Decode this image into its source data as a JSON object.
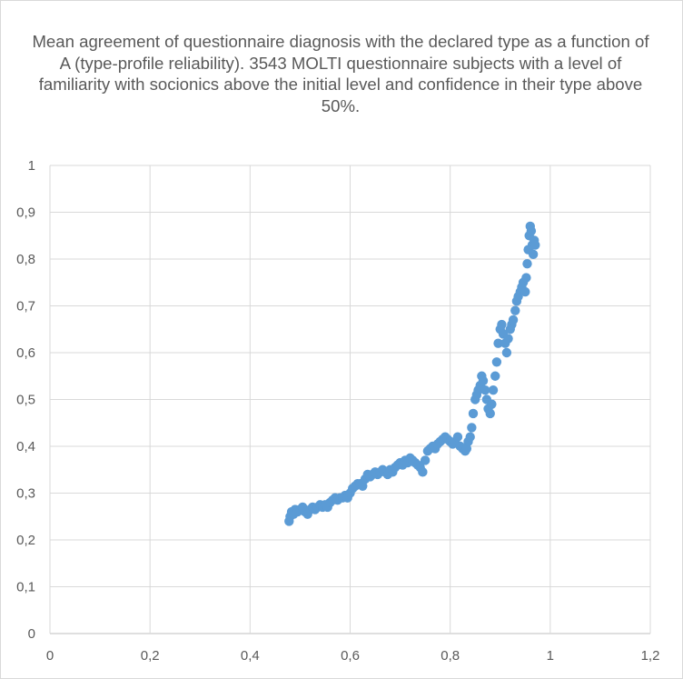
{
  "chart_data": {
    "type": "scatter",
    "title": "Mean agreement of questionnaire diagnosis with the declared type as a function of A (type-profile reliability). 3543 MOLTI questionnaire subjects with a level of familiarity with socionics above the initial level and confidence in their type above 50%.",
    "xlabel": "",
    "ylabel": "",
    "xlim": [
      0,
      1.2
    ],
    "ylim": [
      0,
      1
    ],
    "x_ticks": [
      "0",
      "0,2",
      "0,4",
      "0,6",
      "0,8",
      "1",
      "1,2"
    ],
    "y_ticks": [
      "0",
      "0,1",
      "0,2",
      "0,3",
      "0,4",
      "0,5",
      "0,6",
      "0,7",
      "0,8",
      "0,9",
      "1"
    ],
    "grid": true,
    "legend": "none",
    "series": [
      {
        "color": "#5b9bd5",
        "x": [
          0.478,
          0.48,
          0.483,
          0.487,
          0.49,
          0.495,
          0.5,
          0.505,
          0.51,
          0.515,
          0.52,
          0.525,
          0.53,
          0.535,
          0.54,
          0.545,
          0.55,
          0.555,
          0.56,
          0.565,
          0.57,
          0.575,
          0.58,
          0.585,
          0.59,
          0.595,
          0.6,
          0.605,
          0.61,
          0.615,
          0.62,
          0.625,
          0.63,
          0.635,
          0.64,
          0.645,
          0.65,
          0.655,
          0.66,
          0.665,
          0.67,
          0.675,
          0.68,
          0.685,
          0.69,
          0.695,
          0.7,
          0.705,
          0.71,
          0.715,
          0.72,
          0.725,
          0.73,
          0.735,
          0.74,
          0.745,
          0.75,
          0.755,
          0.76,
          0.765,
          0.77,
          0.775,
          0.78,
          0.785,
          0.79,
          0.795,
          0.8,
          0.805,
          0.81,
          0.815,
          0.82,
          0.825,
          0.83,
          0.833,
          0.836,
          0.84,
          0.843,
          0.846,
          0.85,
          0.853,
          0.856,
          0.86,
          0.863,
          0.866,
          0.87,
          0.873,
          0.876,
          0.88,
          0.883,
          0.886,
          0.89,
          0.893,
          0.896,
          0.9,
          0.903,
          0.906,
          0.91,
          0.913,
          0.916,
          0.92,
          0.923,
          0.926,
          0.93,
          0.933,
          0.936,
          0.94,
          0.943,
          0.946,
          0.95,
          0.952,
          0.954,
          0.956,
          0.958,
          0.96,
          0.962,
          0.964,
          0.966,
          0.968,
          0.97
        ],
        "y": [
          0.24,
          0.25,
          0.26,
          0.255,
          0.265,
          0.26,
          0.265,
          0.27,
          0.26,
          0.255,
          0.265,
          0.27,
          0.265,
          0.27,
          0.275,
          0.27,
          0.275,
          0.27,
          0.28,
          0.285,
          0.29,
          0.285,
          0.29,
          0.29,
          0.295,
          0.29,
          0.3,
          0.31,
          0.315,
          0.32,
          0.32,
          0.315,
          0.33,
          0.34,
          0.335,
          0.34,
          0.345,
          0.34,
          0.345,
          0.35,
          0.345,
          0.34,
          0.35,
          0.345,
          0.355,
          0.36,
          0.365,
          0.36,
          0.37,
          0.365,
          0.375,
          0.37,
          0.365,
          0.36,
          0.355,
          0.345,
          0.37,
          0.39,
          0.395,
          0.4,
          0.395,
          0.405,
          0.41,
          0.415,
          0.42,
          0.415,
          0.41,
          0.405,
          0.41,
          0.42,
          0.4,
          0.395,
          0.39,
          0.395,
          0.41,
          0.42,
          0.44,
          0.47,
          0.5,
          0.51,
          0.52,
          0.53,
          0.55,
          0.54,
          0.52,
          0.5,
          0.48,
          0.47,
          0.49,
          0.52,
          0.55,
          0.58,
          0.62,
          0.65,
          0.66,
          0.64,
          0.62,
          0.6,
          0.63,
          0.65,
          0.66,
          0.67,
          0.69,
          0.71,
          0.72,
          0.73,
          0.74,
          0.75,
          0.73,
          0.76,
          0.79,
          0.82,
          0.85,
          0.87,
          0.86,
          0.83,
          0.81,
          0.84,
          0.83
        ]
      }
    ]
  }
}
